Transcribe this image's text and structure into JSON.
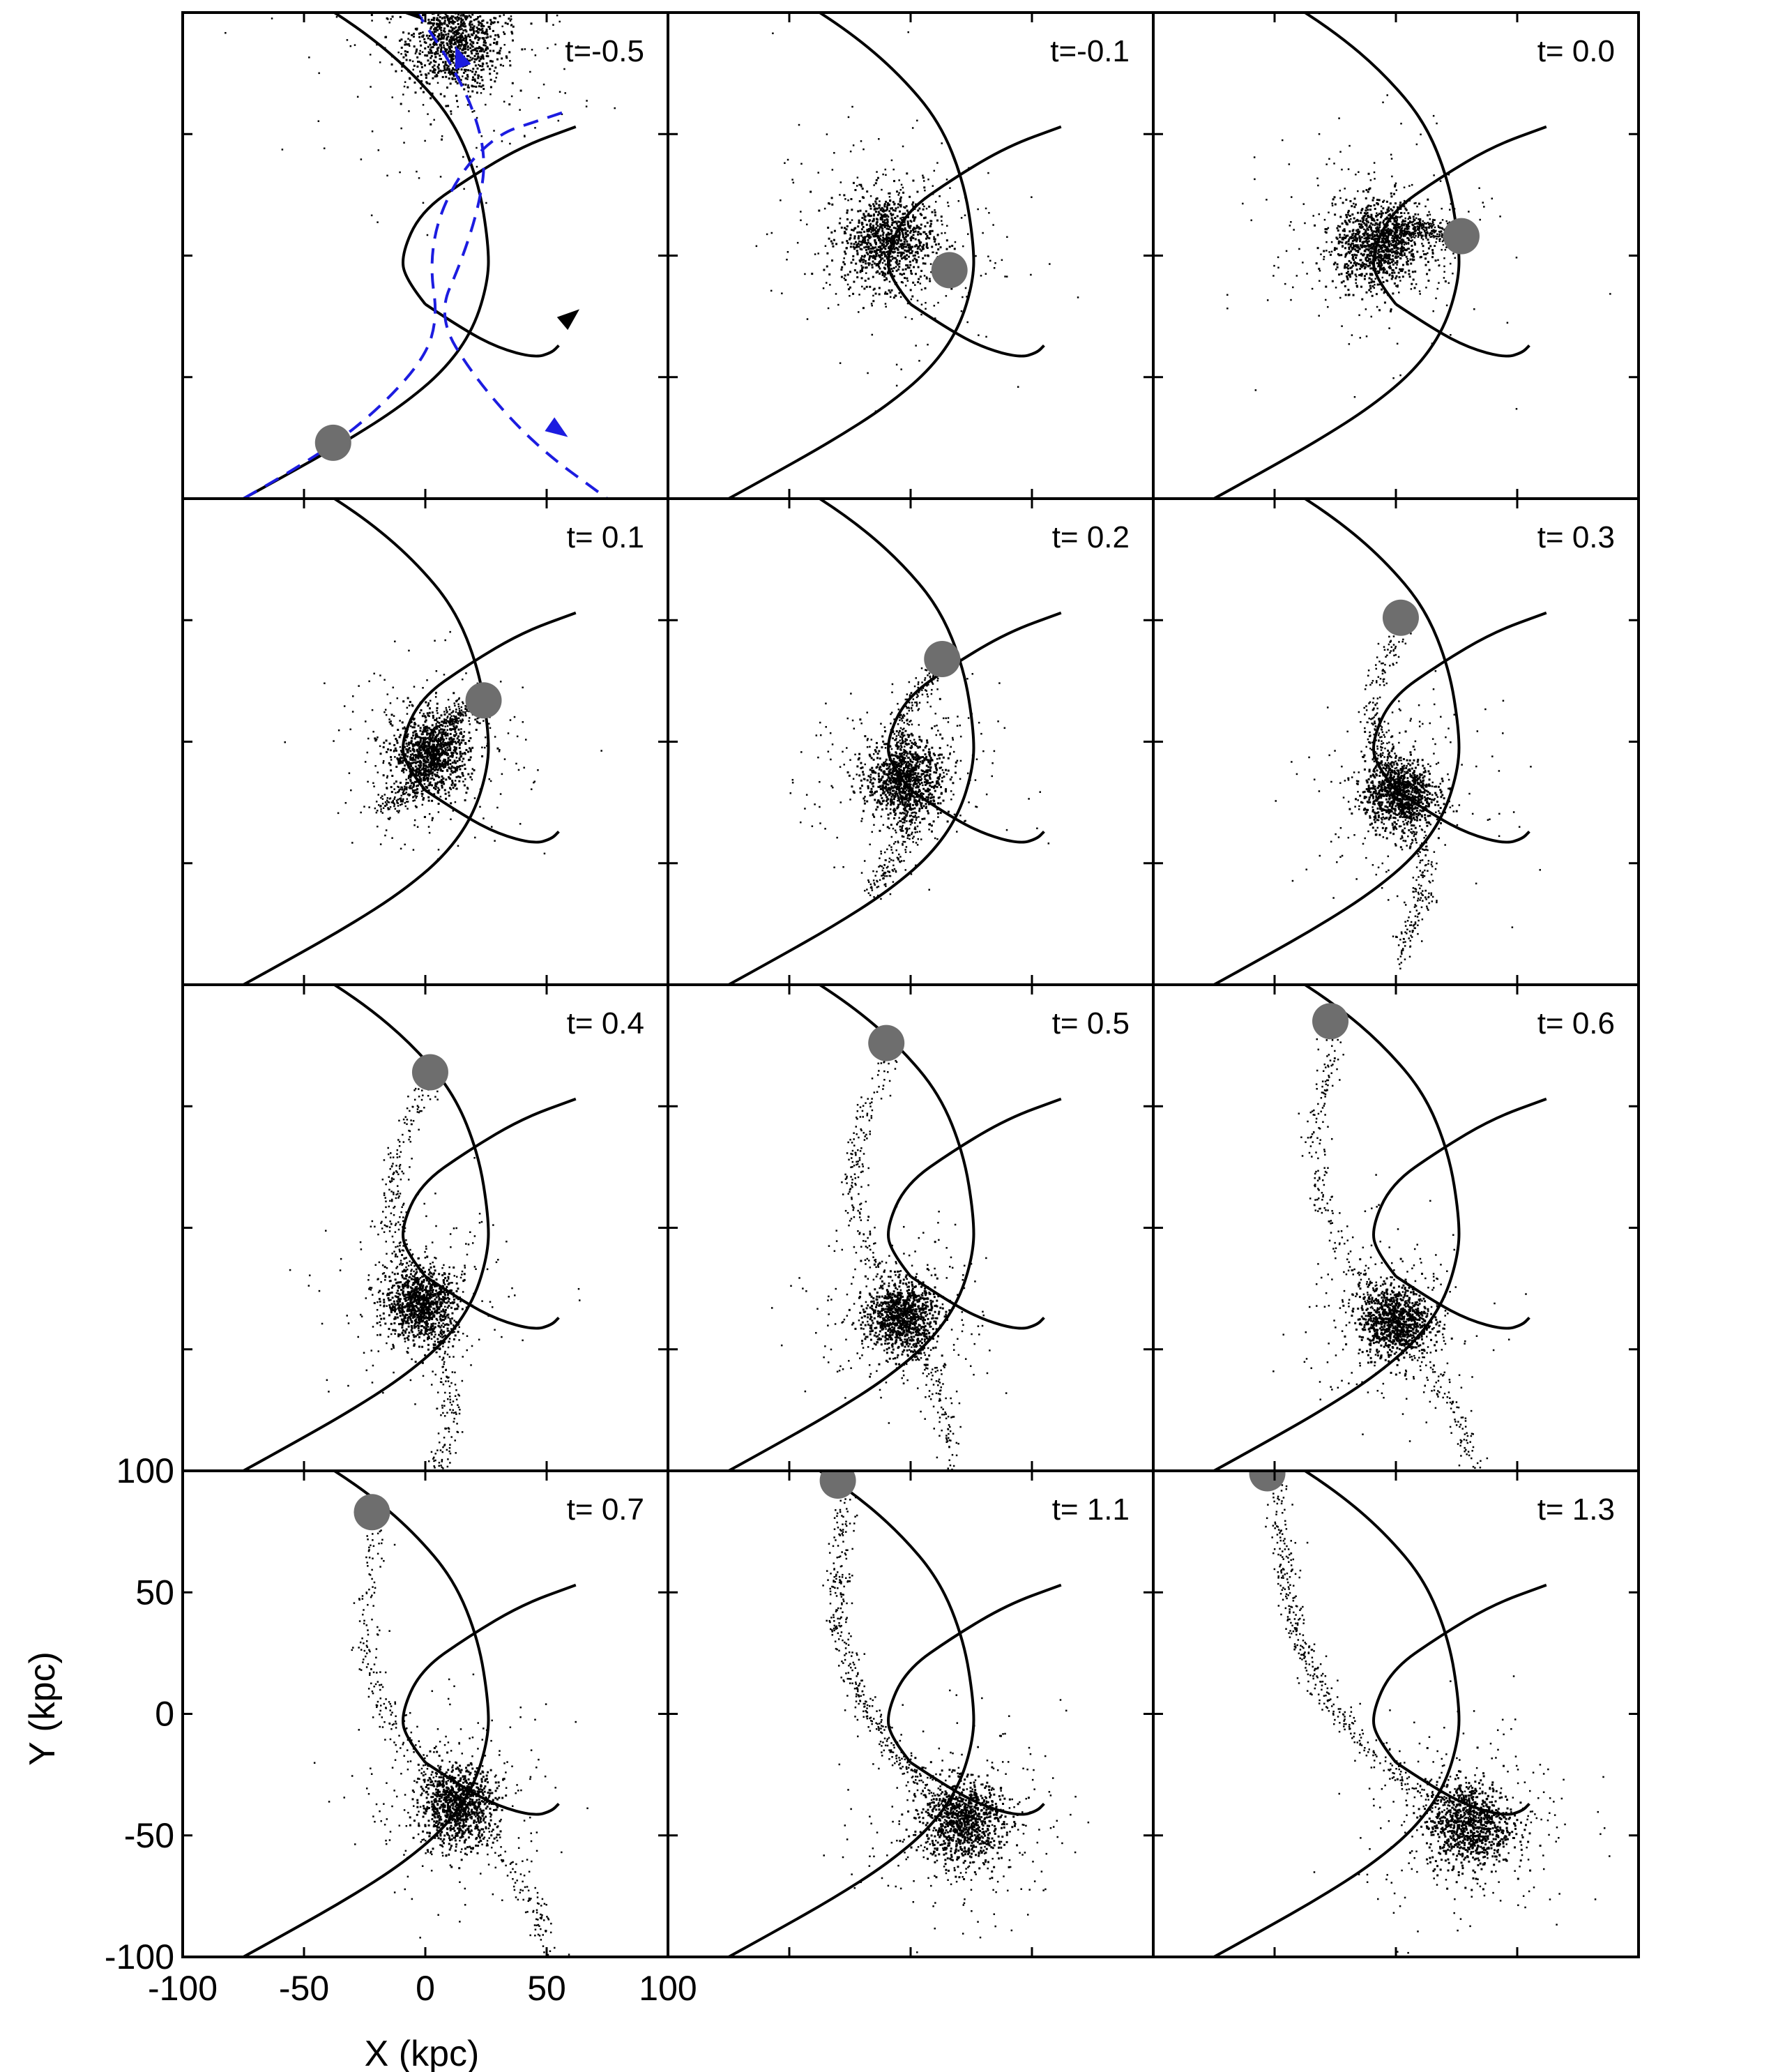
{
  "chart_data": {
    "type": "scatter",
    "description_fields": {
      "xlabel": "X (kpc)",
      "ylabel": "Y (kpc)",
      "xlim": [
        -100,
        100
      ],
      "ylim": [
        -100,
        100
      ],
      "xticks": [
        "-100",
        "-50",
        "0",
        "50",
        "100"
      ],
      "yticks": [
        "-100",
        "-50",
        "0",
        "50",
        "100"
      ]
    },
    "grid": false,
    "layout": {
      "rows": 4,
      "cols": 3
    },
    "colors": {
      "points": "#000000",
      "satellite": "#6e6e6e",
      "orbit": "#000000",
      "dashed_orbit": "#1c1ce0"
    },
    "orbit_host": [
      [
        -75,
        -100
      ],
      [
        -55,
        -89
      ],
      [
        -32,
        -76
      ],
      [
        -10,
        -62
      ],
      [
        8,
        -47
      ],
      [
        20,
        -30
      ],
      [
        26,
        -10
      ],
      [
        26,
        5
      ],
      [
        22,
        30
      ],
      [
        12,
        55
      ],
      [
        -5,
        75
      ],
      [
        -25,
        92
      ],
      [
        -50,
        108
      ]
    ],
    "orbit_satellite": [
      [
        0,
        -20
      ],
      [
        -8,
        -10
      ],
      [
        -10,
        0
      ],
      [
        -2,
        18
      ],
      [
        18,
        32
      ],
      [
        40,
        45
      ],
      [
        62,
        53
      ]
    ],
    "orbit_satellite_tail": [
      [
        0,
        -20
      ],
      [
        15,
        -30
      ],
      [
        30,
        -38
      ],
      [
        45,
        -42
      ],
      [
        52,
        -40
      ],
      [
        55,
        -37
      ]
    ],
    "panels": [
      {
        "label": "t=-0.5",
        "satellite": [
          -38,
          -77
        ],
        "host": [
          12,
          88
        ],
        "spread": 18,
        "arms": 0,
        "dashed": true
      },
      {
        "label": "t=-0.1",
        "satellite": [
          16,
          -6
        ],
        "host": [
          -10,
          7
        ],
        "spread": 17,
        "arms": 0
      },
      {
        "label": "t= 0.0",
        "satellite": [
          27,
          8
        ],
        "host": [
          -8,
          5
        ],
        "spread": 16,
        "arms": 1
      },
      {
        "label": "t= 0.1",
        "satellite": [
          24,
          17
        ],
        "host": [
          2,
          -5
        ],
        "spread": 14,
        "arms": 2
      },
      {
        "label": "t= 0.2",
        "satellite": [
          13,
          34
        ],
        "host": [
          -3,
          -15
        ],
        "spread": 14,
        "arms": 2
      },
      {
        "label": "t= 0.3",
        "satellite": [
          2,
          51
        ],
        "host": [
          1,
          -21
        ],
        "spread": 13,
        "arms": 2
      },
      {
        "label": "t= 0.4",
        "satellite": [
          2,
          64
        ],
        "host": [
          -2,
          -31
        ],
        "spread": 13,
        "arms": 2
      },
      {
        "label": "t= 0.5",
        "satellite": [
          -10,
          76
        ],
        "host": [
          -4,
          -36
        ],
        "spread": 13,
        "arms": 2
      },
      {
        "label": "t= 0.6",
        "satellite": [
          -27,
          85
        ],
        "host": [
          -1,
          -38
        ],
        "spread": 13,
        "arms": 2
      },
      {
        "label": "t= 0.7",
        "satellite": [
          -22,
          83
        ],
        "host": [
          13,
          -37
        ],
        "spread": 14,
        "arms": 2
      },
      {
        "label": "t= 1.1",
        "satellite": [
          -30,
          96
        ],
        "host": [
          21,
          -44
        ],
        "spread": 15,
        "arms": 1
      },
      {
        "label": "t= 1.3",
        "satellite": [
          -53,
          99
        ],
        "host": [
          30,
          -45
        ],
        "spread": 16,
        "arms": 1
      }
    ]
  }
}
